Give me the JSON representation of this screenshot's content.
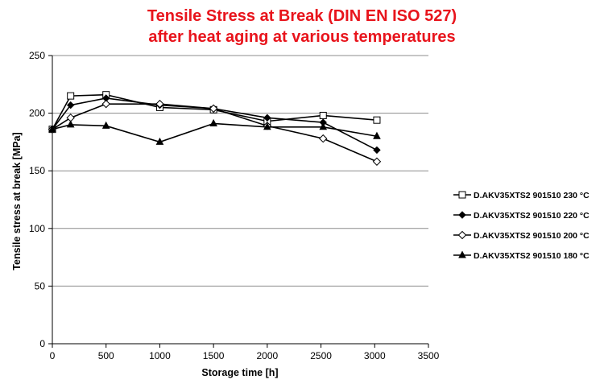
{
  "chart_data": {
    "type": "line",
    "title": "Tensile Stress at Break (DIN EN ISO 527)",
    "subtitle": "after heat aging at various temperatures",
    "xlabel": "Storage time [h]",
    "ylabel": "Tensile stress at break [MPa]",
    "xlim": [
      0,
      3500
    ],
    "ylim": [
      0,
      250
    ],
    "xticks": [
      0,
      500,
      1000,
      1500,
      2000,
      2500,
      3000,
      3500
    ],
    "yticks": [
      0,
      50,
      100,
      150,
      200,
      250
    ],
    "grid": "horizontal",
    "legend_position": "right",
    "series": [
      {
        "name": "D.AKV35XTS2 901510 230 °C",
        "marker": "square-open",
        "x": [
          0,
          170,
          500,
          1000,
          1500,
          2000,
          2520,
          3020
        ],
        "y": [
          186,
          215,
          216,
          205,
          203,
          193,
          198,
          194
        ]
      },
      {
        "name": "D.AKV35XTS2 901510 220 °C",
        "marker": "diamond-filled",
        "x": [
          0,
          170,
          500,
          1000,
          1500,
          2000,
          2520,
          3020
        ],
        "y": [
          186,
          207,
          213,
          207,
          204,
          196,
          192,
          168
        ]
      },
      {
        "name": "D.AKV35XTS2 901510 200 °C",
        "marker": "diamond-open",
        "x": [
          0,
          170,
          500,
          1000,
          1500,
          2000,
          2520,
          3020
        ],
        "y": [
          186,
          196,
          208,
          208,
          204,
          189,
          178,
          158
        ]
      },
      {
        "name": "D.AKV35XTS2 901510 180 °C",
        "marker": "triangle-filled",
        "x": [
          0,
          170,
          500,
          1000,
          1500,
          2000,
          2520,
          3020
        ],
        "y": [
          186,
          190,
          189,
          175,
          191,
          188,
          188,
          180
        ]
      }
    ]
  }
}
